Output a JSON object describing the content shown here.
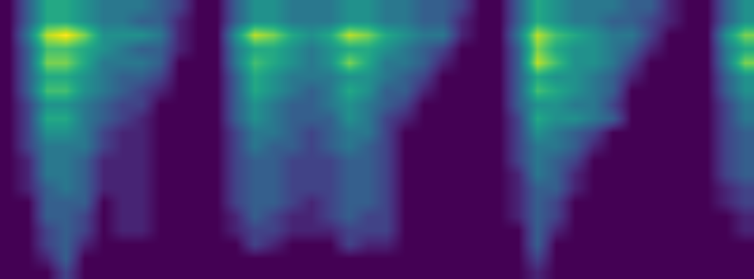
{
  "chart_data": {
    "type": "heatmap",
    "color": "Viridis",
    "tick_labels": false,
    "zlim": [
      0,
      10
    ],
    "cells": [
      [
        0,
        3,
        6,
        6,
        5,
        4,
        4,
        4,
        3,
        2,
        0,
        0,
        3,
        5,
        5,
        4,
        4,
        4,
        5,
        5,
        4,
        4,
        3,
        3,
        2,
        0,
        0,
        3,
        6,
        5,
        4,
        4,
        4,
        3,
        3,
        1,
        0,
        0,
        3,
        5
      ],
      [
        0,
        3,
        6,
        6,
        5,
        4,
        4,
        3,
        3,
        1,
        0,
        0,
        3,
        5,
        5,
        4,
        4,
        4,
        5,
        5,
        4,
        4,
        3,
        3,
        1,
        0,
        0,
        3,
        6,
        5,
        4,
        4,
        3,
        3,
        2,
        1,
        0,
        0,
        3,
        5
      ],
      [
        0,
        4,
        9,
        10,
        8,
        5,
        5,
        5,
        4,
        1,
        0,
        0,
        5,
        9,
        8,
        6,
        5,
        6,
        9,
        8,
        6,
        5,
        4,
        4,
        1,
        0,
        0,
        4,
        9,
        7,
        6,
        5,
        4,
        4,
        2,
        0,
        0,
        0,
        5,
        8
      ],
      [
        0,
        3,
        7,
        7,
        6,
        5,
        4,
        3,
        3,
        1,
        0,
        0,
        4,
        6,
        6,
        5,
        4,
        5,
        6,
        6,
        5,
        4,
        3,
        2,
        0,
        0,
        0,
        3,
        8,
        6,
        5,
        5,
        4,
        3,
        1,
        0,
        0,
        0,
        4,
        6
      ],
      [
        0,
        3,
        8,
        8,
        6,
        4,
        4,
        4,
        3,
        0,
        0,
        0,
        4,
        7,
        6,
        5,
        4,
        5,
        8,
        6,
        4,
        4,
        3,
        1,
        0,
        0,
        0,
        3,
        9,
        7,
        5,
        5,
        4,
        2,
        0,
        0,
        0,
        0,
        4,
        8
      ],
      [
        0,
        3,
        6,
        6,
        5,
        4,
        3,
        3,
        2,
        0,
        0,
        0,
        3,
        6,
        5,
        4,
        4,
        4,
        5,
        5,
        4,
        3,
        2,
        0,
        0,
        0,
        0,
        3,
        6,
        5,
        5,
        4,
        3,
        1,
        0,
        0,
        0,
        0,
        3,
        5
      ],
      [
        0,
        3,
        7,
        7,
        5,
        4,
        3,
        2,
        1,
        0,
        0,
        0,
        3,
        6,
        5,
        4,
        3,
        4,
        6,
        5,
        3,
        3,
        1,
        0,
        0,
        0,
        0,
        3,
        7,
        6,
        5,
        4,
        3,
        0,
        0,
        0,
        0,
        0,
        3,
        5
      ],
      [
        0,
        2,
        5,
        5,
        4,
        3,
        2,
        2,
        0,
        0,
        0,
        0,
        3,
        5,
        4,
        3,
        3,
        4,
        5,
        4,
        3,
        2,
        0,
        0,
        0,
        0,
        0,
        3,
        5,
        5,
        4,
        4,
        2,
        0,
        0,
        0,
        0,
        0,
        2,
        4
      ],
      [
        0,
        2,
        6,
        6,
        4,
        3,
        2,
        1,
        0,
        0,
        0,
        0,
        3,
        5,
        4,
        3,
        3,
        3,
        5,
        4,
        2,
        1,
        0,
        0,
        0,
        0,
        0,
        2,
        6,
        5,
        5,
        4,
        3,
        0,
        0,
        0,
        0,
        0,
        2,
        4
      ],
      [
        0,
        2,
        5,
        5,
        4,
        2,
        1,
        1,
        0,
        0,
        0,
        0,
        2,
        4,
        4,
        3,
        2,
        3,
        4,
        4,
        2,
        0,
        0,
        0,
        0,
        0,
        0,
        2,
        5,
        4,
        3,
        2,
        0,
        0,
        0,
        0,
        0,
        0,
        2,
        3
      ],
      [
        0,
        2,
        4,
        4,
        4,
        2,
        1,
        1,
        0,
        0,
        0,
        0,
        2,
        4,
        3,
        3,
        2,
        3,
        4,
        3,
        2,
        0,
        0,
        0,
        0,
        0,
        0,
        2,
        4,
        4,
        3,
        1,
        0,
        0,
        0,
        0,
        0,
        0,
        2,
        3
      ],
      [
        0,
        1,
        4,
        4,
        3,
        1,
        1,
        1,
        0,
        0,
        0,
        0,
        2,
        3,
        3,
        2,
        2,
        2,
        3,
        3,
        2,
        0,
        0,
        0,
        0,
        0,
        0,
        2,
        4,
        3,
        2,
        0,
        0,
        0,
        0,
        0,
        0,
        0,
        2,
        3
      ],
      [
        0,
        1,
        4,
        4,
        3,
        1,
        1,
        1,
        0,
        0,
        0,
        0,
        2,
        3,
        3,
        2,
        2,
        2,
        3,
        3,
        2,
        0,
        0,
        0,
        0,
        0,
        0,
        1,
        4,
        3,
        1,
        0,
        0,
        0,
        0,
        0,
        0,
        0,
        2,
        3
      ],
      [
        0,
        1,
        3,
        4,
        3,
        1,
        1,
        1,
        0,
        0,
        0,
        0,
        2,
        3,
        3,
        2,
        2,
        2,
        3,
        3,
        2,
        0,
        0,
        0,
        0,
        0,
        0,
        1,
        3,
        3,
        1,
        0,
        0,
        0,
        0,
        0,
        0,
        0,
        1,
        2
      ],
      [
        0,
        0,
        3,
        3,
        3,
        0,
        1,
        1,
        0,
        0,
        0,
        0,
        2,
        3,
        3,
        2,
        1,
        2,
        3,
        3,
        2,
        0,
        0,
        0,
        0,
        0,
        0,
        1,
        3,
        2,
        0,
        0,
        0,
        0,
        0,
        0,
        0,
        0,
        1,
        2
      ],
      [
        0,
        0,
        3,
        3,
        2,
        0,
        1,
        1,
        0,
        0,
        0,
        0,
        1,
        3,
        2,
        1,
        1,
        2,
        3,
        2,
        2,
        0,
        0,
        0,
        0,
        0,
        0,
        1,
        3,
        2,
        0,
        0,
        0,
        0,
        0,
        0,
        0,
        0,
        0,
        1
      ],
      [
        0,
        0,
        2,
        3,
        2,
        0,
        1,
        1,
        0,
        0,
        0,
        0,
        1,
        2,
        2,
        1,
        1,
        1,
        2,
        2,
        2,
        0,
        0,
        0,
        0,
        0,
        0,
        0,
        3,
        1,
        0,
        0,
        0,
        0,
        0,
        0,
        0,
        0,
        0,
        1
      ],
      [
        0,
        0,
        2,
        3,
        1,
        0,
        0,
        0,
        0,
        0,
        0,
        0,
        0,
        2,
        1,
        0,
        0,
        0,
        2,
        1,
        1,
        0,
        0,
        0,
        0,
        0,
        0,
        0,
        3,
        0,
        0,
        0,
        0,
        0,
        0,
        0,
        0,
        0,
        0,
        0
      ],
      [
        0,
        0,
        1,
        3,
        0,
        0,
        0,
        0,
        0,
        0,
        0,
        0,
        0,
        0,
        0,
        0,
        0,
        0,
        0,
        0,
        0,
        0,
        0,
        0,
        0,
        0,
        0,
        0,
        2,
        0,
        0,
        0,
        0,
        0,
        0,
        0,
        0,
        0,
        0,
        0
      ],
      [
        0,
        0,
        0,
        2,
        0,
        0,
        0,
        0,
        0,
        0,
        0,
        0,
        0,
        0,
        0,
        0,
        0,
        0,
        0,
        0,
        0,
        0,
        0,
        0,
        0,
        0,
        0,
        0,
        1,
        0,
        0,
        0,
        0,
        0,
        0,
        0,
        0,
        0,
        0,
        0
      ]
    ]
  }
}
